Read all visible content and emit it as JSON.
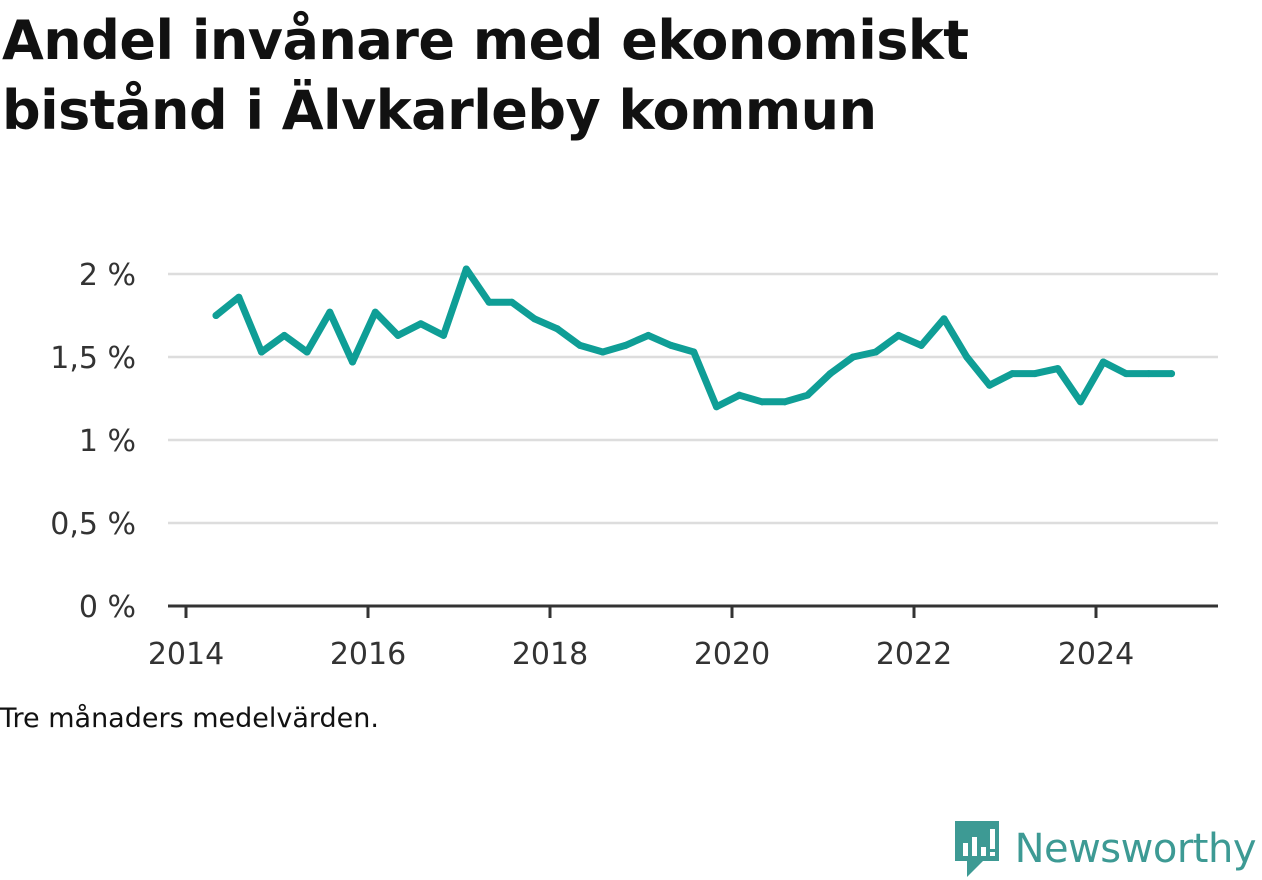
{
  "title": "Andel invånare med ekonomiskt bistånd i Älvkarleby kommun",
  "note": "Tre månaders medelvärden.",
  "brand": {
    "name": "Newsworthy",
    "icon": "newsworthy-logo-icon",
    "color": "#3d9a94"
  },
  "colors": {
    "line": "#0f9e96",
    "grid": "#dddddd",
    "axis": "#333333"
  },
  "chart_data": {
    "type": "line",
    "title": "Andel invånare med ekonomiskt bistånd i Älvkarleby kommun",
    "xlabel": "",
    "ylabel": "",
    "ylim": [
      0,
      2
    ],
    "xlim": [
      2014,
      2025.5
    ],
    "yticks": [
      0,
      0.5,
      1,
      1.5,
      2
    ],
    "ytick_labels": [
      "0 %",
      "0,5 %",
      "1 %",
      "1,5 %",
      "2 %"
    ],
    "xticks": [
      2014,
      2016,
      2018,
      2020,
      2022,
      2024
    ],
    "xtick_labels": [
      "2014",
      "2016",
      "2018",
      "2020",
      "2022",
      "2024"
    ],
    "grid": true,
    "series": [
      {
        "name": "Andel invånare med ekonomiskt bistånd",
        "x": [
          2014.33,
          2014.58,
          2014.83,
          2015.08,
          2015.33,
          2015.58,
          2015.83,
          2016.08,
          2016.33,
          2016.58,
          2016.83,
          2017.08,
          2017.33,
          2017.58,
          2017.83,
          2018.08,
          2018.33,
          2018.58,
          2018.83,
          2019.08,
          2019.33,
          2019.58,
          2019.83,
          2020.08,
          2020.33,
          2020.58,
          2020.83,
          2021.08,
          2021.33,
          2021.58,
          2021.83,
          2022.08,
          2022.33,
          2022.58,
          2022.83,
          2023.08,
          2023.33,
          2023.58,
          2023.83,
          2024.08,
          2024.33,
          2024.58,
          2024.83
        ],
        "values": [
          1.75,
          1.86,
          1.53,
          1.63,
          1.53,
          1.77,
          1.47,
          1.77,
          1.63,
          1.7,
          1.63,
          2.03,
          1.83,
          1.83,
          1.73,
          1.67,
          1.57,
          1.53,
          1.57,
          1.63,
          1.57,
          1.53,
          1.2,
          1.27,
          1.23,
          1.23,
          1.27,
          1.4,
          1.5,
          1.53,
          1.63,
          1.57,
          1.73,
          1.5,
          1.33,
          1.4,
          1.4,
          1.43,
          1.23,
          1.47,
          1.4,
          1.4,
          1.4
        ]
      }
    ]
  }
}
